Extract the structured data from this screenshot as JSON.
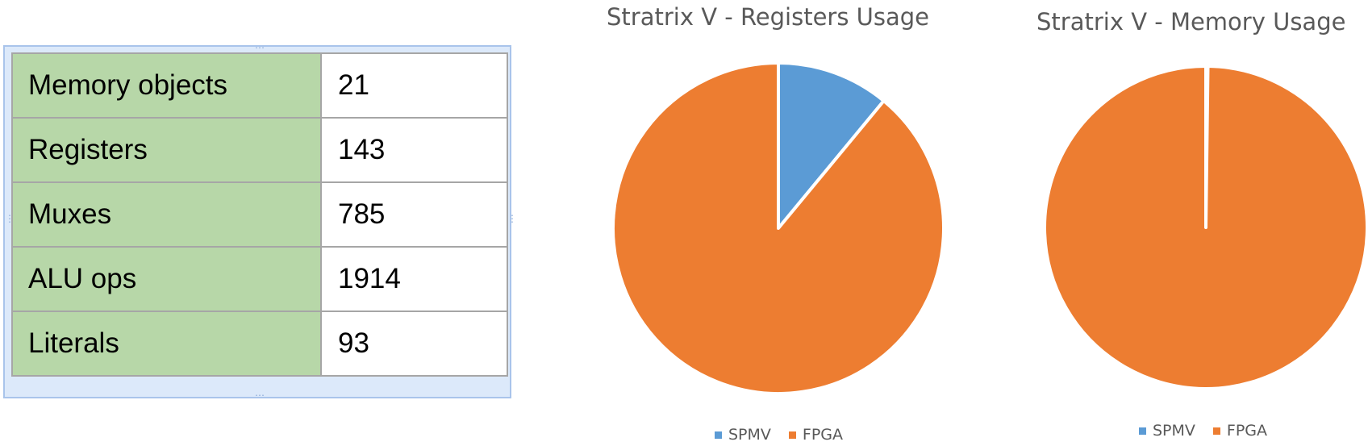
{
  "table": {
    "rows": [
      {
        "label": "Memory objects",
        "value": "21"
      },
      {
        "label": "Registers",
        "value": "143"
      },
      {
        "label": "Muxes",
        "value": "785"
      },
      {
        "label": "ALU ops",
        "value": "1914"
      },
      {
        "label": "Literals",
        "value": "93"
      }
    ],
    "label_color": "#b7d7a8"
  },
  "chart_data": [
    {
      "type": "pie",
      "title": "Stratrix V - Registers Usage",
      "categories": [
        "SPMV",
        "FPGA"
      ],
      "values": [
        11,
        89
      ],
      "colors": [
        "#5b9bd5",
        "#ed7d31"
      ],
      "legend": "bottom"
    },
    {
      "type": "pie",
      "title": "Stratrix V - Memory Usage",
      "categories": [
        "SPMV",
        "FPGA"
      ],
      "values": [
        0.2,
        99.8
      ],
      "colors": [
        "#5b9bd5",
        "#ed7d31"
      ],
      "legend": "bottom"
    }
  ]
}
